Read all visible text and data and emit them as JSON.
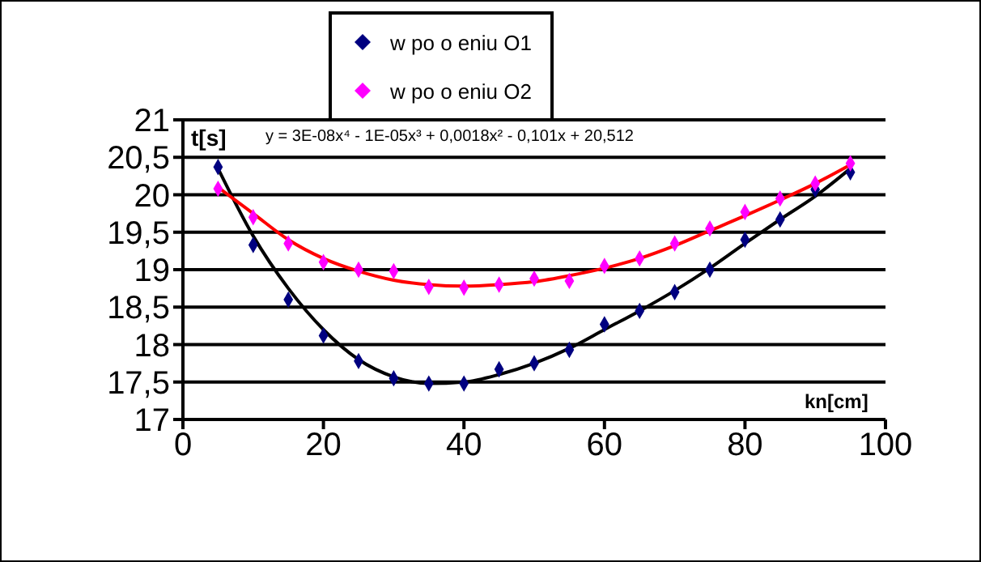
{
  "chart_data": {
    "type": "scatter",
    "x": [
      5,
      10,
      15,
      20,
      25,
      30,
      35,
      40,
      45,
      50,
      55,
      60,
      65,
      70,
      75,
      80,
      85,
      90,
      95
    ],
    "series": [
      {
        "name": "w po o  eniu O1",
        "type": "scatter",
        "color": "#000080",
        "marker": "diamond",
        "values": [
          20.37,
          19.33,
          18.6,
          18.12,
          17.78,
          17.55,
          17.48,
          17.48,
          17.67,
          17.75,
          17.93,
          18.27,
          18.45,
          18.7,
          19.0,
          19.4,
          19.67,
          20.07,
          20.3
        ]
      },
      {
        "name": "w po o  eniu O2",
        "type": "scatter",
        "color": "#ff00ff",
        "marker": "diamond",
        "values": [
          20.08,
          19.7,
          19.35,
          19.1,
          19.0,
          18.98,
          18.77,
          18.76,
          18.8,
          18.88,
          18.85,
          19.05,
          19.15,
          19.35,
          19.55,
          19.77,
          19.95,
          20.15,
          20.42
        ]
      },
      {
        "type": "line",
        "color": "#000000",
        "marker": "none",
        "x": [
          5,
          10,
          15,
          20,
          25,
          30,
          35,
          40,
          45,
          50,
          55,
          60,
          65,
          70,
          75,
          80,
          85,
          90,
          95
        ],
        "values": [
          20.35,
          19.45,
          18.75,
          18.2,
          17.8,
          17.57,
          17.48,
          17.5,
          17.6,
          17.75,
          17.95,
          18.2,
          18.45,
          18.72,
          19.02,
          19.35,
          19.67,
          19.98,
          20.35
        ]
      },
      {
        "type": "line",
        "color": "#ff0000",
        "marker": "none",
        "x": [
          5,
          10,
          15,
          20,
          25,
          30,
          35,
          40,
          45,
          50,
          55,
          60,
          65,
          70,
          75,
          80,
          85,
          90,
          95
        ],
        "values": [
          20.1,
          19.75,
          19.4,
          19.15,
          18.98,
          18.86,
          18.8,
          18.78,
          18.8,
          18.84,
          18.92,
          19.02,
          19.15,
          19.32,
          19.52,
          19.72,
          19.93,
          20.15,
          20.4
        ]
      }
    ],
    "xlim": [
      0,
      100
    ],
    "xticks": [
      0,
      20,
      40,
      60,
      80,
      100
    ],
    "ylim": [
      17,
      21
    ],
    "yticks": [
      17,
      {
        "value": 17.5,
        "label": "17,5"
      },
      18,
      {
        "value": 18.5,
        "label": "18,5"
      },
      19,
      {
        "value": 19.5,
        "label": "19,5"
      },
      20,
      {
        "value": 20.5,
        "label": "20,5"
      },
      21
    ],
    "ylabel": "t[s]",
    "xlabel": "kn[cm]",
    "annotations": [
      "y = 3E-08x⁴ - 1E-05x³ + 0,0018x² - 0,101x + 20,512"
    ],
    "grid": "y",
    "legend": "top"
  }
}
